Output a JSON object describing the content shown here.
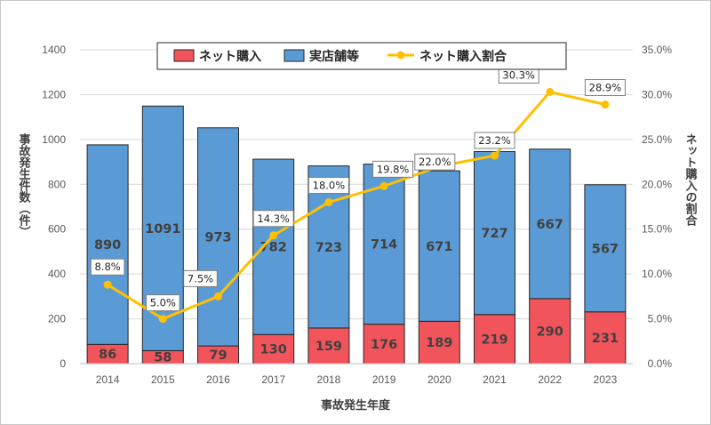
{
  "chart_data": {
    "type": "bar+line",
    "stacked": true,
    "categories": [
      "2014",
      "2015",
      "2016",
      "2017",
      "2018",
      "2019",
      "2020",
      "2021",
      "2022",
      "2023"
    ],
    "series": [
      {
        "name": "ネット購入",
        "type": "bar",
        "color": "#f2545b",
        "values": [
          86,
          58,
          79,
          130,
          159,
          176,
          189,
          219,
          290,
          231
        ]
      },
      {
        "name": "実店舗等",
        "type": "bar",
        "color": "#5b9bd5",
        "values": [
          890,
          1091,
          973,
          782,
          723,
          714,
          671,
          727,
          667,
          567
        ]
      },
      {
        "name": "ネット購入割合",
        "type": "line",
        "axis": "right",
        "color": "#ffc000",
        "values": [
          8.8,
          5.0,
          7.5,
          14.3,
          18.0,
          19.8,
          22.0,
          23.2,
          30.3,
          28.9
        ],
        "labels": [
          "8.8%",
          "5.0%",
          "7.5%",
          "14.3%",
          "18.0%",
          "19.8%",
          "22.0%",
          "23.2%",
          "30.3%",
          "28.9%"
        ]
      }
    ],
    "xlabel": "事故発生年度",
    "ylabel": "事故発生件数（件）",
    "ylabel_right": "ネット購入の割合",
    "ylim": [
      0,
      1400
    ],
    "yticks": [
      0,
      200,
      400,
      600,
      800,
      1000,
      1200,
      1400
    ],
    "ylim_right": [
      0,
      35
    ],
    "yticks_right": [
      "0.0%",
      "5.0%",
      "10.0%",
      "15.0%",
      "20.0%",
      "25.0%",
      "30.0%",
      "35.0%"
    ],
    "legend": [
      "ネット購入",
      "実店舗等",
      "ネット購入割合"
    ],
    "legend_position": "top",
    "grid": true
  }
}
